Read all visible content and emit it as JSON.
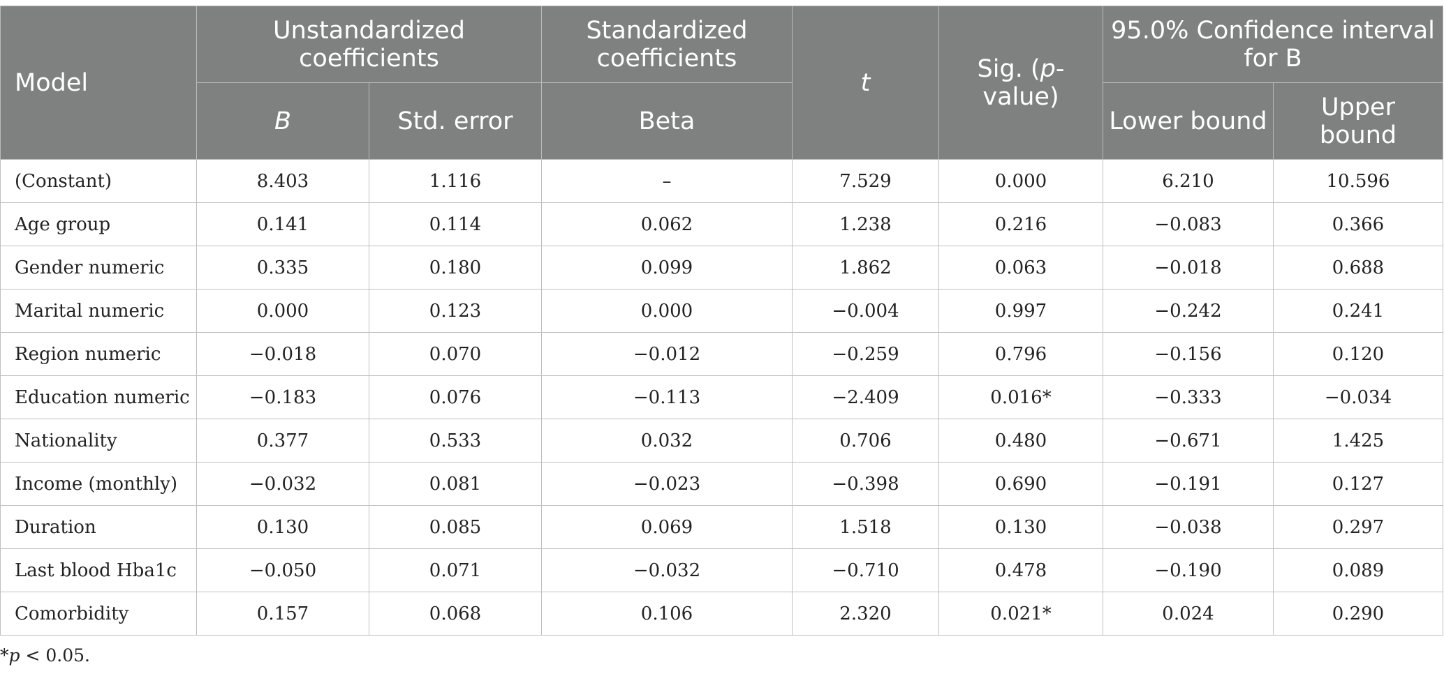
{
  "header": {
    "model": "Model",
    "unstd": "Unstandardized coefficients",
    "std": "Standardized coefficients",
    "t": "t",
    "sig_a": "Sig. (",
    "sig_p": "p",
    "sig_b": "-value)",
    "ci": "95.0% Confidence interval for B",
    "b": "B",
    "std_error": "Std. error",
    "beta": "Beta",
    "lower": "Lower bound",
    "upper": "Upper bound"
  },
  "rows": [
    [
      "(Constant)",
      "8.403",
      "1.116",
      "–",
      "7.529",
      "0.000",
      "6.210",
      "10.596"
    ],
    [
      "Age group",
      "0.141",
      "0.114",
      "0.062",
      "1.238",
      "0.216",
      "−0.083",
      "0.366"
    ],
    [
      "Gender numeric",
      "0.335",
      "0.180",
      "0.099",
      "1.862",
      "0.063",
      "−0.018",
      "0.688"
    ],
    [
      "Marital numeric",
      "0.000",
      "0.123",
      "0.000",
      "−0.004",
      "0.997",
      "−0.242",
      "0.241"
    ],
    [
      "Region numeric",
      "−0.018",
      "0.070",
      "−0.012",
      "−0.259",
      "0.796",
      "−0.156",
      "0.120"
    ],
    [
      "Education numeric",
      "−0.183",
      "0.076",
      "−0.113",
      "−2.409",
      "0.016*",
      "−0.333",
      "−0.034"
    ],
    [
      "Nationality",
      "0.377",
      "0.533",
      "0.032",
      "0.706",
      "0.480",
      "−0.671",
      "1.425"
    ],
    [
      "Income (monthly)",
      "−0.032",
      "0.081",
      "−0.023",
      "−0.398",
      "0.690",
      "−0.191",
      "0.127"
    ],
    [
      "Duration",
      "0.130",
      "0.085",
      "0.069",
      "1.518",
      "0.130",
      "−0.038",
      "0.297"
    ],
    [
      "Last blood Hba1c",
      "−0.050",
      "0.071",
      "−0.032",
      "−0.710",
      "0.478",
      "−0.190",
      "0.089"
    ],
    [
      "Comorbidity",
      "0.157",
      "0.068",
      "0.106",
      "2.320",
      "0.021*",
      "0.024",
      "0.290"
    ]
  ],
  "footnote": {
    "star": "*",
    "p": "p",
    "rest": " < 0.05."
  }
}
